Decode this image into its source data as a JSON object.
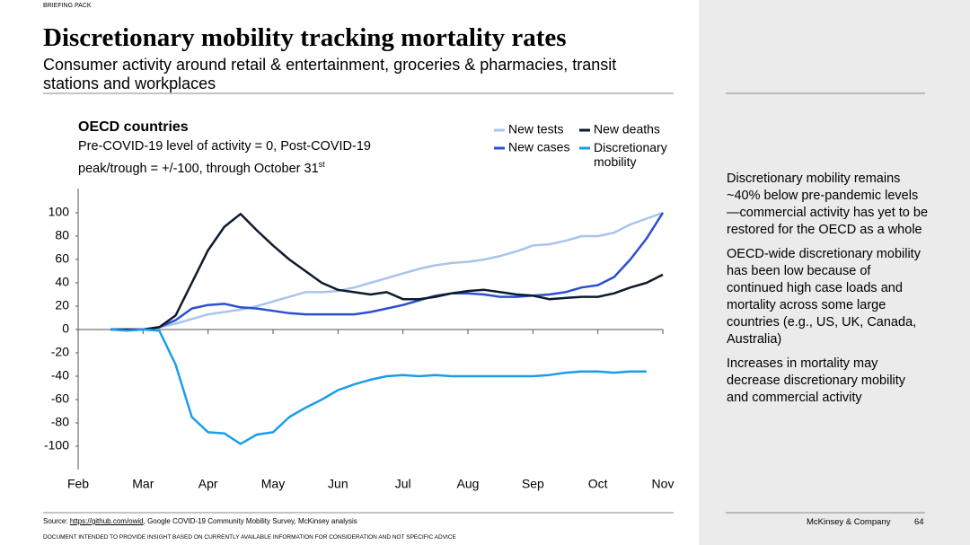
{
  "header": {
    "tag": "BRIEFING PACK",
    "title": "Discretionary mobility tracking mortality rates",
    "subtitle": "Consumer activity around retail & entertainment, groceries & pharmacies, transit stations and workplaces"
  },
  "chart_data": {
    "type": "line",
    "title": "OECD countries",
    "subtitle": "Pre-COVID-19 level of activity = 0, Post-COVID-19 peak/trough = +/-100, through October 31",
    "subtitle_superscript": "st",
    "x": [
      0.5,
      0.75,
      1,
      1.25,
      1.5,
      1.75,
      2,
      2.25,
      2.5,
      2.75,
      3,
      3.25,
      3.5,
      3.75,
      4,
      4.25,
      4.5,
      4.75,
      5,
      5.25,
      5.5,
      5.75,
      6,
      6.25,
      6.5,
      6.75,
      7,
      7.25,
      7.5,
      7.75,
      8,
      8.25,
      8.5,
      8.75,
      9
    ],
    "xlim": [
      0,
      9
    ],
    "xticks": [
      {
        "value": 0,
        "label": "Feb"
      },
      {
        "value": 1,
        "label": "Mar"
      },
      {
        "value": 2,
        "label": "Apr"
      },
      {
        "value": 3,
        "label": "May"
      },
      {
        "value": 4,
        "label": "Jun"
      },
      {
        "value": 5,
        "label": "Jul"
      },
      {
        "value": 6,
        "label": "Aug"
      },
      {
        "value": 7,
        "label": "Sep"
      },
      {
        "value": 8,
        "label": "Oct"
      },
      {
        "value": 9,
        "label": "Nov"
      }
    ],
    "ylim": [
      -120,
      120
    ],
    "yticks": [
      -100,
      -80,
      -60,
      -40,
      -20,
      0,
      20,
      40,
      60,
      80,
      100
    ],
    "grid": false,
    "series": [
      {
        "name": "New tests",
        "color": "#a9c4ee",
        "values": [
          0,
          0,
          0,
          2,
          5,
          9,
          13,
          15,
          17,
          20,
          24,
          28,
          32,
          32,
          33,
          36,
          40,
          44,
          48,
          52,
          55,
          57,
          58,
          60,
          63,
          67,
          72,
          73,
          76,
          80,
          80,
          83,
          90,
          95,
          100
        ]
      },
      {
        "name": "New cases",
        "color": "#2b4fd1",
        "values": [
          0,
          0,
          0,
          2,
          8,
          18,
          21,
          22,
          19,
          18,
          16,
          14,
          13,
          13,
          13,
          13,
          15,
          18,
          21,
          25,
          29,
          31,
          31,
          30,
          28,
          28,
          29,
          30,
          32,
          36,
          38,
          45,
          60,
          78,
          100
        ]
      },
      {
        "name": "New deaths",
        "color": "#0d1a2c",
        "values": [
          0,
          0,
          0,
          2,
          12,
          40,
          68,
          88,
          99,
          85,
          72,
          60,
          50,
          40,
          34,
          32,
          30,
          32,
          26,
          26,
          28,
          31,
          33,
          34,
          32,
          30,
          29,
          26,
          27,
          28,
          28,
          31,
          36,
          40,
          47
        ]
      },
      {
        "name": "Discretionary mobility",
        "color": "#1a9ee8",
        "values": [
          0,
          -1,
          0,
          -1,
          -30,
          -75,
          -88,
          -89,
          -98,
          -90,
          -88,
          -75,
          -67,
          -60,
          -52,
          -47,
          -43,
          -40,
          -39,
          -40,
          -39,
          -40,
          -40,
          -40,
          -40,
          -40,
          -40,
          -39,
          -37,
          -36,
          -36,
          -37,
          -36,
          -36,
          null
        ]
      }
    ]
  },
  "sidebar": {
    "paragraphs": [
      "Discretionary mobility remains ~40% below pre-pandemic levels—commercial activity has yet to be restored for the OECD as a whole",
      "OECD-wide discretionary mobility has been low because of continued high case loads and mortality across some large countries (e.g., US, UK, Canada, Australia)",
      "Increases in mortality may decrease discretionary mobility and commercial activity"
    ]
  },
  "footer": {
    "source_prefix": "Source:",
    "source_link": "https://github.com/owid",
    "source_rest": ", Google COVID-19 Community Mobility Survey, McKinsey analysis",
    "disclaimer": "DOCUMENT INTENDED TO PROVIDE INSIGHT BASED ON CURRENTLY AVAILABLE INFORMATION FOR CONSIDERATION AND NOT SPECIFIC ADVICE",
    "company": "McKinsey & Company",
    "page": "64"
  }
}
